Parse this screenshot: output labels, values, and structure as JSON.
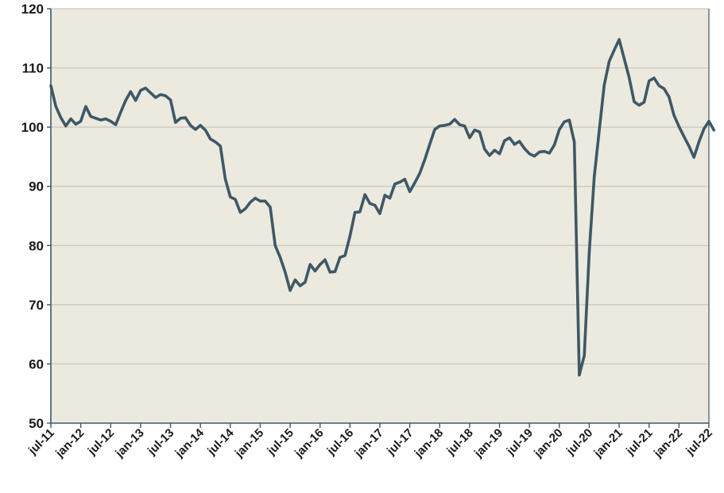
{
  "chart_data": {
    "type": "line",
    "title": "",
    "xlabel": "",
    "ylabel": "",
    "ylim": [
      50,
      120
    ],
    "yticks": [
      "50",
      "60",
      "70",
      "80",
      "90",
      "100",
      "110",
      "120"
    ],
    "xticks": [
      "jul-11",
      "jan-12",
      "jul-12",
      "jan-13",
      "jul-13",
      "jan-14",
      "jul-14",
      "jan-15",
      "jul-15",
      "jan-16",
      "jul-16",
      "jan-17",
      "jul-17",
      "jan-18",
      "jul-18",
      "jan-19",
      "jul-19",
      "jan-20",
      "jul-20",
      "jan-21",
      "jul-21",
      "jan-22",
      "jul-22"
    ],
    "grid": "horizontal",
    "legend": "none",
    "colors": {
      "plot_bg": "#ece9df",
      "line": "#3e5866",
      "grid": "#c9c6bd",
      "axis": "#3e5866"
    },
    "series": [
      {
        "x": [
          "2011-07",
          "2011-08",
          "2011-09",
          "2011-10",
          "2011-11",
          "2011-12",
          "2012-01",
          "2012-02",
          "2012-03",
          "2012-04",
          "2012-05",
          "2012-06",
          "2012-07",
          "2012-08",
          "2012-09",
          "2012-10",
          "2012-11",
          "2012-12",
          "2013-01",
          "2013-02",
          "2013-03",
          "2013-04",
          "2013-05",
          "2013-06",
          "2013-07",
          "2013-08",
          "2013-09",
          "2013-10",
          "2013-11",
          "2013-12",
          "2014-01",
          "2014-02",
          "2014-03",
          "2014-04",
          "2014-05",
          "2014-06",
          "2014-07",
          "2014-08",
          "2014-09",
          "2014-10",
          "2014-11",
          "2014-12",
          "2015-01",
          "2015-02",
          "2015-03",
          "2015-04",
          "2015-05",
          "2015-06",
          "2015-07",
          "2015-08",
          "2015-09",
          "2015-10",
          "2015-11",
          "2015-12",
          "2016-01",
          "2016-02",
          "2016-03",
          "2016-04",
          "2016-05",
          "2016-06",
          "2016-07",
          "2016-08",
          "2016-09",
          "2016-10",
          "2016-11",
          "2016-12",
          "2017-01",
          "2017-02",
          "2017-03",
          "2017-04",
          "2017-05",
          "2017-06",
          "2017-07",
          "2017-08",
          "2017-09",
          "2017-10",
          "2017-11",
          "2017-12",
          "2018-01",
          "2018-02",
          "2018-03",
          "2018-04",
          "2018-05",
          "2018-06",
          "2018-07",
          "2018-08",
          "2018-09",
          "2018-10",
          "2018-11",
          "2018-12",
          "2019-01",
          "2019-02",
          "2019-03",
          "2019-04",
          "2019-05",
          "2019-06",
          "2019-07",
          "2019-08",
          "2019-09",
          "2019-10",
          "2019-11",
          "2019-12",
          "2020-01",
          "2020-02",
          "2020-03",
          "2020-04",
          "2020-05",
          "2020-06",
          "2020-07",
          "2020-08",
          "2020-09",
          "2020-10",
          "2020-11",
          "2020-12",
          "2021-01",
          "2021-02",
          "2021-03",
          "2021-04",
          "2021-05",
          "2021-06",
          "2021-07",
          "2021-08",
          "2021-09",
          "2021-10",
          "2021-11",
          "2021-12",
          "2022-01",
          "2022-02",
          "2022-03",
          "2022-04",
          "2022-05",
          "2022-06",
          "2022-07",
          "2022-08"
        ],
        "values": [
          107,
          103.5,
          101.6,
          100.2,
          101.4,
          100.5,
          101,
          103.5,
          101.8,
          101.5,
          101.2,
          101.4,
          101,
          100.4,
          102.5,
          104.5,
          106,
          104.5,
          106.2,
          106.6,
          105.8,
          105,
          105.5,
          105.3,
          104.6,
          100.8,
          101.5,
          101.6,
          100.3,
          99.6,
          100.3,
          99.5,
          98,
          97.5,
          96.8,
          91.2,
          88.2,
          87.8,
          85.6,
          86.2,
          87.3,
          88,
          87.5,
          87.5,
          86.5,
          80,
          78,
          75.5,
          72.4,
          74.2,
          73.2,
          73.8,
          76.8,
          75.7,
          76.8,
          77.6,
          75.5,
          75.6,
          78,
          78.3,
          81.6,
          85.6,
          85.7,
          88.6,
          87.1,
          86.8,
          85.4,
          88.5,
          88,
          90.4,
          90.7,
          91.2,
          89.1,
          90.6,
          92.2,
          94.5,
          97.1,
          99.6,
          100.2,
          100.3,
          100.5,
          101.3,
          100.4,
          100.2,
          98.2,
          99.5,
          99.2,
          96.3,
          95.2,
          96.1,
          95.5,
          97.7,
          98.2,
          97.1,
          97.6,
          96.4,
          95.5,
          95.1,
          95.8,
          95.9,
          95.6,
          97,
          99.6,
          100.9,
          101.2,
          97.5,
          58.1,
          61.4,
          78.9,
          91.6,
          99.4,
          107.1,
          111.1,
          113,
          114.8,
          111.6,
          108.4,
          104.3,
          103.7,
          104.2,
          107.8,
          108.3,
          107,
          106.5,
          105.1,
          102,
          100.1,
          98.4,
          96.8,
          94.9,
          97.5,
          99.7,
          101,
          99.5
        ]
      }
    ]
  }
}
